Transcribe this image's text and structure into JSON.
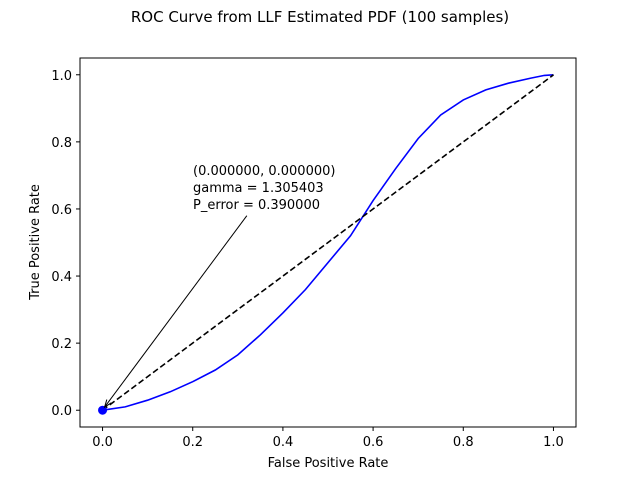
{
  "chart_data": {
    "type": "line",
    "title": "ROC Curve from LLF Estimated PDF (100 samples)",
    "xlabel": "False Positive Rate",
    "ylabel": "True Positive Rate",
    "xlim": [
      -0.05,
      1.05
    ],
    "ylim": [
      -0.05,
      1.05
    ],
    "x_ticks": [
      0.0,
      0.2,
      0.4,
      0.6,
      0.8,
      1.0
    ],
    "y_ticks": [
      0.0,
      0.2,
      0.4,
      0.6,
      0.8,
      1.0
    ],
    "tick_labels": [
      "0.0",
      "0.2",
      "0.4",
      "0.6",
      "0.8",
      "1.0"
    ],
    "grid": false,
    "series": [
      {
        "style": "solid",
        "color": "#0000ff",
        "x": [
          0.0,
          0.05,
          0.1,
          0.15,
          0.2,
          0.25,
          0.3,
          0.35,
          0.4,
          0.45,
          0.5,
          0.55,
          0.6,
          0.65,
          0.7,
          0.75,
          0.8,
          0.85,
          0.9,
          0.95,
          0.98,
          1.0
        ],
        "y": [
          0.0,
          0.01,
          0.03,
          0.055,
          0.085,
          0.12,
          0.165,
          0.225,
          0.29,
          0.36,
          0.44,
          0.52,
          0.625,
          0.72,
          0.81,
          0.88,
          0.925,
          0.955,
          0.975,
          0.99,
          0.998,
          1.0
        ]
      },
      {
        "style": "dashed",
        "color": "#000000",
        "x": [
          0.0,
          1.0
        ],
        "y": [
          0.0,
          1.0
        ]
      }
    ],
    "marker": {
      "x": 0.0,
      "y": 0.0,
      "color": "#0000ff"
    },
    "annotation": {
      "lines": [
        "(0.000000, 0.000000)",
        "gamma = 1.305403",
        "P_error = 0.390000"
      ],
      "text_x": 0.2,
      "text_y": 0.6,
      "arrow_from": [
        0.32,
        0.58
      ],
      "arrow_to": [
        0.0,
        0.0
      ]
    }
  }
}
